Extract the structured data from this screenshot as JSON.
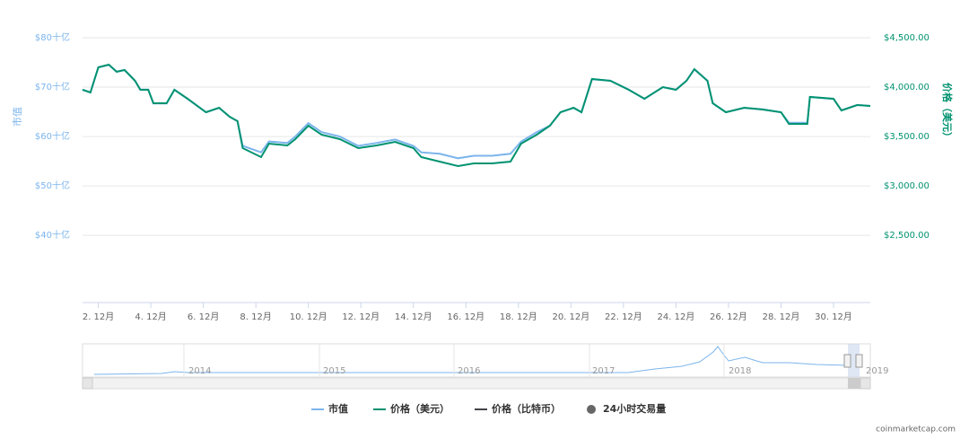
{
  "chart_data": {
    "type": "line",
    "x": [
      1.4,
      1.7,
      2.0,
      2.4,
      2.7,
      3.0,
      3.4,
      3.6,
      3.9,
      4.1,
      4.6,
      4.9,
      5.4,
      6.1,
      6.6,
      7.0,
      7.3,
      7.5,
      8.2,
      8.5,
      9.2,
      9.5,
      10.0,
      10.5,
      11.2,
      11.9,
      12.6,
      13.3,
      14.0,
      14.3,
      15.0,
      15.7,
      16.3,
      17.0,
      17.7,
      18.1,
      18.7,
      19.2,
      19.6,
      20.1,
      20.4,
      20.8,
      21.5,
      22.2,
      22.8,
      23.5,
      24.0,
      24.4,
      24.7,
      25.2,
      25.4,
      25.9,
      26.6,
      27.3,
      28.0,
      28.3,
      29.0,
      29.1,
      30.0,
      30.3,
      30.9,
      31.4
    ],
    "xlim": [
      1.4,
      31.4
    ],
    "xticks": [
      {
        "value": 2,
        "label": "2. 12月"
      },
      {
        "value": 4,
        "label": "4. 12月"
      },
      {
        "value": 6,
        "label": "6. 12月"
      },
      {
        "value": 8,
        "label": "8. 12月"
      },
      {
        "value": 10,
        "label": "10. 12月"
      },
      {
        "value": 12,
        "label": "12. 12月"
      },
      {
        "value": 14,
        "label": "14. 12月"
      },
      {
        "value": 16,
        "label": "16. 12月"
      },
      {
        "value": 18,
        "label": "18. 12月"
      },
      {
        "value": 20,
        "label": "20. 12月"
      },
      {
        "value": 22,
        "label": "22. 12月"
      },
      {
        "value": 24,
        "label": "24. 12月"
      },
      {
        "value": 26,
        "label": "26. 12月"
      },
      {
        "value": 28,
        "label": "28. 12月"
      },
      {
        "value": 30,
        "label": "30. 12月"
      }
    ],
    "ylabel": "市值",
    "ylim": [
      26.4,
      80
    ],
    "yticks": [
      {
        "value": 40,
        "label": "$40十亿"
      },
      {
        "value": 50,
        "label": "$50十亿"
      },
      {
        "value": 60,
        "label": "$60十亿"
      },
      {
        "value": 70,
        "label": "$70十亿"
      },
      {
        "value": 80,
        "label": "$80十亿"
      }
    ],
    "y2label": "价格（美元）",
    "y2lim": [
      1818,
      4500
    ],
    "y2ticks": [
      {
        "value": 2500,
        "label": "$2,500.00"
      },
      {
        "value": 3000,
        "label": "$3,000.00"
      },
      {
        "value": 3500,
        "label": "$3,500.00"
      },
      {
        "value": 4000,
        "label": "$4,000.00"
      },
      {
        "value": 4500,
        "label": "$4,500.00"
      }
    ],
    "grid": true,
    "series": [
      {
        "name": "市值",
        "color": "#7cb5ec",
        "axis": "y",
        "values": [
          69.5,
          68.9,
          74,
          74.5,
          73.1,
          73.5,
          71.3,
          69.5,
          69.5,
          66.7,
          66.7,
          69.5,
          67.6,
          64.9,
          65.8,
          64,
          63.1,
          58.1,
          56.8,
          59,
          58.7,
          60,
          62.7,
          60.9,
          60,
          58.1,
          58.7,
          59.4,
          58.1,
          56.8,
          56.5,
          55.6,
          56.1,
          56.1,
          56.5,
          59,
          60.9,
          62.2,
          64.9,
          65.8,
          64.9,
          71.6,
          71.3,
          69.5,
          67.6,
          70,
          69.5,
          71.3,
          73.6,
          71.3,
          66.7,
          64.9,
          65.8,
          65.5,
          64.9,
          62.8,
          62.8,
          68,
          67.6,
          65.3,
          66.4,
          66.2
        ]
      },
      {
        "name": "价格（美元）",
        "color": "#009270",
        "axis": "y2",
        "values": [
          3973,
          3945,
          4200,
          4227,
          4155,
          4173,
          4064,
          3973,
          3973,
          3836,
          3836,
          3973,
          3882,
          3745,
          3791,
          3700,
          3655,
          3382,
          3291,
          3427,
          3409,
          3473,
          3609,
          3518,
          3473,
          3382,
          3409,
          3445,
          3382,
          3291,
          3245,
          3200,
          3227,
          3227,
          3245,
          3427,
          3518,
          3609,
          3745,
          3791,
          3745,
          4082,
          4064,
          3973,
          3882,
          4000,
          3973,
          4064,
          4182,
          4064,
          3836,
          3745,
          3791,
          3773,
          3745,
          3627,
          3627,
          3900,
          3882,
          3764,
          3818,
          3809
        ]
      }
    ],
    "legend_extra": [
      {
        "name": "价格（比特币）",
        "color": "#434348"
      },
      {
        "name": "24小时交易量",
        "color": "#666666"
      }
    ],
    "navigator_labels": [
      "2014",
      "2015",
      "2016",
      "2017",
      "2018",
      "2019"
    ],
    "credit": "coinmarketcap.com"
  }
}
